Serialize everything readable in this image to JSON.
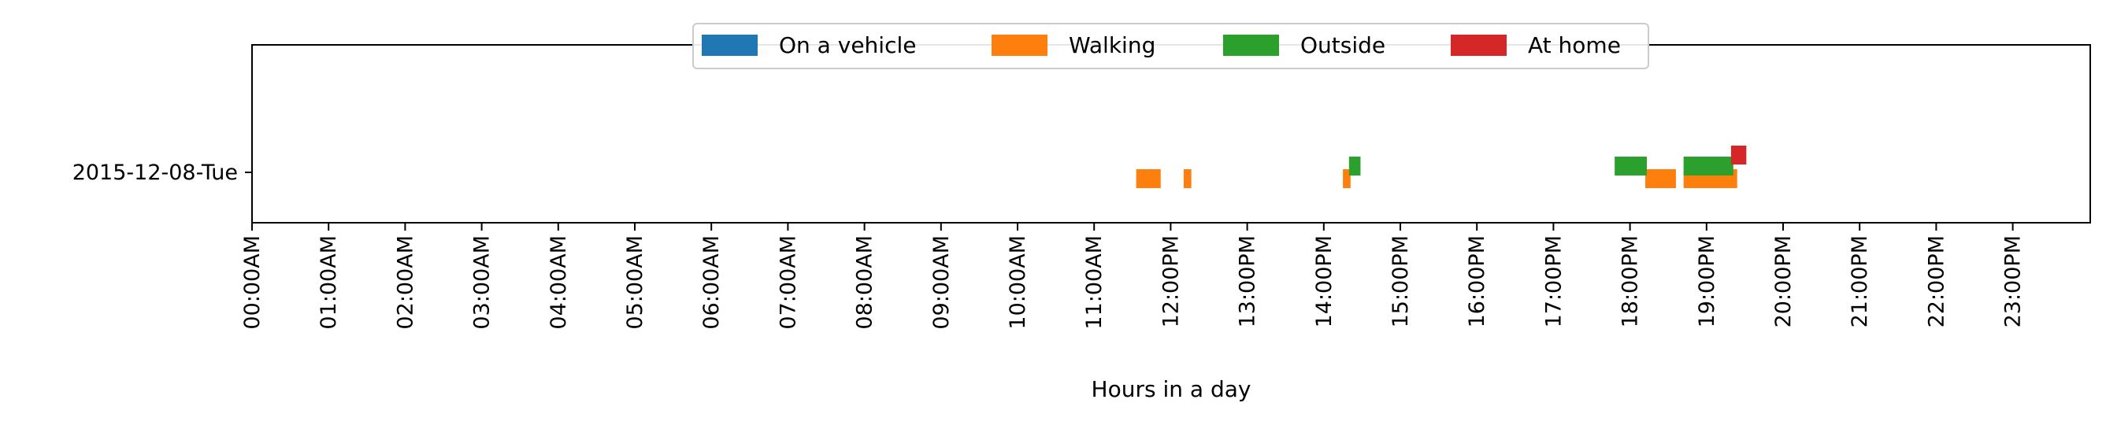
{
  "chart_data": {
    "type": "gantt",
    "xlabel": "Hours in a day",
    "xlim": [
      0,
      24
    ],
    "x_ticks": [
      {
        "value": 0,
        "label": "00:00AM"
      },
      {
        "value": 1,
        "label": "01:00AM"
      },
      {
        "value": 2,
        "label": "02:00AM"
      },
      {
        "value": 3,
        "label": "03:00AM"
      },
      {
        "value": 4,
        "label": "04:00AM"
      },
      {
        "value": 5,
        "label": "05:00AM"
      },
      {
        "value": 6,
        "label": "06:00AM"
      },
      {
        "value": 7,
        "label": "07:00AM"
      },
      {
        "value": 8,
        "label": "08:00AM"
      },
      {
        "value": 9,
        "label": "09:00AM"
      },
      {
        "value": 10,
        "label": "10:00AM"
      },
      {
        "value": 11,
        "label": "11:00AM"
      },
      {
        "value": 12,
        "label": "12:00PM"
      },
      {
        "value": 13,
        "label": "13:00PM"
      },
      {
        "value": 14,
        "label": "14:00PM"
      },
      {
        "value": 15,
        "label": "15:00PM"
      },
      {
        "value": 16,
        "label": "16:00PM"
      },
      {
        "value": 17,
        "label": "17:00PM"
      },
      {
        "value": 18,
        "label": "18:00PM"
      },
      {
        "value": 19,
        "label": "19:00PM"
      },
      {
        "value": 20,
        "label": "20:00PM"
      },
      {
        "value": 21,
        "label": "21:00PM"
      },
      {
        "value": 22,
        "label": "22:00PM"
      },
      {
        "value": 23,
        "label": "23:00PM"
      }
    ],
    "days": [
      "2015-12-08-Tue"
    ],
    "legend_position": "top-center",
    "series": [
      {
        "name": "On a vehicle",
        "color": "#1f77b4",
        "intervals": []
      },
      {
        "name": "Walking",
        "color": "#ff7f0e",
        "intervals": [
          {
            "day": "2015-12-08-Tue",
            "start": 11.55,
            "end": 11.87
          },
          {
            "day": "2015-12-08-Tue",
            "start": 12.17,
            "end": 12.27
          },
          {
            "day": "2015-12-08-Tue",
            "start": 14.25,
            "end": 14.35
          },
          {
            "day": "2015-12-08-Tue",
            "start": 18.2,
            "end": 18.6
          },
          {
            "day": "2015-12-08-Tue",
            "start": 18.7,
            "end": 19.4
          }
        ]
      },
      {
        "name": "Outside",
        "color": "#2ca02c",
        "intervals": [
          {
            "day": "2015-12-08-Tue",
            "start": 14.33,
            "end": 14.48
          },
          {
            "day": "2015-12-08-Tue",
            "start": 17.8,
            "end": 18.22
          },
          {
            "day": "2015-12-08-Tue",
            "start": 18.7,
            "end": 19.35
          }
        ]
      },
      {
        "name": "At home",
        "color": "#d62728",
        "intervals": [
          {
            "day": "2015-12-08-Tue",
            "start": 19.32,
            "end": 19.52
          }
        ]
      }
    ]
  }
}
